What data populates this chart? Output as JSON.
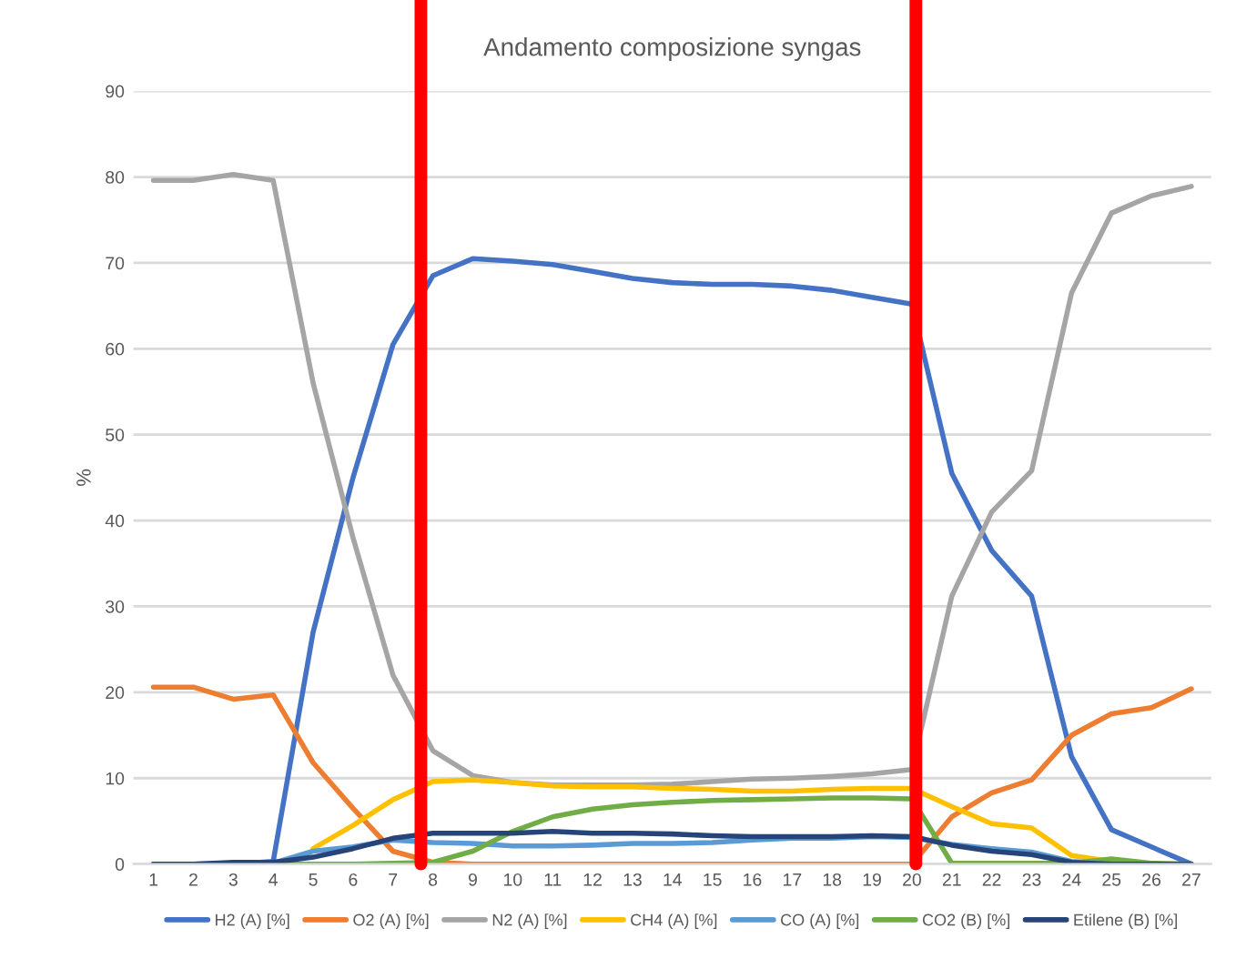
{
  "chart_data": {
    "type": "line",
    "title": "Andamento composizione syngas",
    "ylabel": "%",
    "x": [
      1,
      2,
      3,
      4,
      5,
      6,
      7,
      8,
      9,
      10,
      11,
      12,
      13,
      14,
      15,
      16,
      17,
      18,
      19,
      20,
      21,
      22,
      23,
      24,
      25,
      26,
      27
    ],
    "xlim": [
      0.5,
      27.5
    ],
    "xticks": [
      1,
      2,
      3,
      4,
      5,
      6,
      7,
      8,
      9,
      10,
      11,
      12,
      13,
      14,
      15,
      16,
      17,
      18,
      19,
      20,
      21,
      22,
      23,
      24,
      25,
      26,
      27
    ],
    "ylim": [
      0,
      90
    ],
    "yticks": [
      0,
      10,
      20,
      30,
      40,
      50,
      60,
      70,
      80,
      90
    ],
    "grid": "y",
    "legend": "bottom",
    "marker": "none",
    "line_style": "solid",
    "series": [
      {
        "name": "H2 (A) [%]",
        "color": "#4472c4",
        "values": [
          0,
          0,
          0,
          0.3,
          27,
          45,
          60.5,
          68.5,
          70.5,
          70.2,
          69.8,
          69,
          68.2,
          67.7,
          67.5,
          67.5,
          67.3,
          66.8,
          66,
          65.2,
          45.5,
          36.5,
          31.2,
          12.5,
          4,
          2,
          0
        ]
      },
      {
        "name": "O2 (A) [%]",
        "color": "#ed7d31",
        "values": [
          20.6,
          20.6,
          19.2,
          19.7,
          11.8,
          6.5,
          1.5,
          0.2,
          0,
          0,
          0,
          0,
          0,
          0,
          0,
          0,
          0,
          0,
          0,
          0,
          5.5,
          8.3,
          9.8,
          15,
          17.5,
          18.2,
          20.4
        ]
      },
      {
        "name": "N2 (A) [%]",
        "color": "#a5a5a5",
        "values": [
          79.6,
          79.6,
          80.3,
          79.6,
          56,
          38,
          22,
          13.2,
          10.3,
          9.5,
          9.2,
          9.2,
          9.2,
          9.3,
          9.6,
          9.9,
          10,
          10.2,
          10.5,
          11,
          31.2,
          41,
          45.8,
          66.5,
          75.8,
          77.8,
          78.9
        ]
      },
      {
        "name": "CH4 (A) [%]",
        "color": "#ffc000",
        "values": [
          null,
          null,
          null,
          null,
          1.8,
          4.5,
          7.5,
          9.6,
          9.8,
          9.5,
          9.1,
          9,
          9,
          8.8,
          8.7,
          8.5,
          8.5,
          8.7,
          8.8,
          8.8,
          6.7,
          4.7,
          4.2,
          1,
          0.3,
          0,
          0
        ]
      },
      {
        "name": "CO (A) [%]",
        "color": "#5b9bd5",
        "values": [
          0,
          0,
          0.1,
          0.1,
          1.5,
          2,
          2.8,
          2.5,
          2.4,
          2.1,
          2.1,
          2.2,
          2.4,
          2.4,
          2.5,
          2.8,
          3,
          3,
          3.2,
          3.1,
          2.3,
          1.8,
          1.4,
          0.3,
          0,
          0,
          0
        ]
      },
      {
        "name": "CO2 (B) [%]",
        "color": "#70ad47",
        "values": [
          null,
          null,
          0,
          0,
          0,
          0,
          0.1,
          0.2,
          1.5,
          3.8,
          5.5,
          6.4,
          6.9,
          7.2,
          7.4,
          7.5,
          7.6,
          7.7,
          7.7,
          7.6,
          0.1,
          0.1,
          0.1,
          0.1,
          0.6,
          0.1,
          0
        ]
      },
      {
        "name": "Etilene (B) [%]",
        "color": "#264478",
        "values": [
          0,
          0,
          0.2,
          0.2,
          0.8,
          1.8,
          3,
          3.6,
          3.6,
          3.6,
          3.8,
          3.6,
          3.6,
          3.5,
          3.3,
          3.2,
          3.2,
          3.2,
          3.3,
          3.2,
          2.2,
          1.5,
          1.1,
          0.2,
          0,
          0,
          0
        ]
      }
    ],
    "ref_lines": [
      {
        "axis": "x",
        "value": 7.7,
        "color": "#ff0000"
      },
      {
        "axis": "x",
        "value": 20.1,
        "color": "#ff0000"
      }
    ]
  }
}
